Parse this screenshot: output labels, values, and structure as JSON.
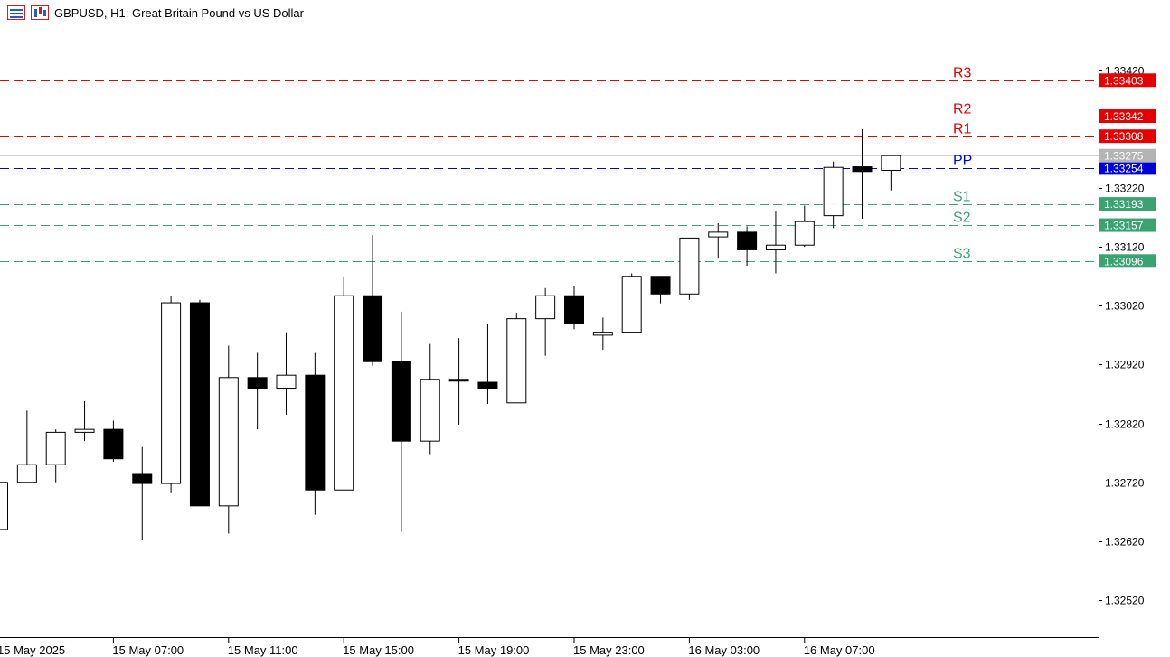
{
  "window": {
    "symbol_title": "GBPUSD, H1:  Great Britain Pound vs US Dollar"
  },
  "colors": {
    "bull_fill": "#ffffff",
    "bear_fill": "#000000",
    "wick": "#000000",
    "resistance": "#e60000",
    "pivot": "#0000d8",
    "support": "#3ba272",
    "current_price_tag": "#b4b4b4",
    "axis": "#000000"
  },
  "icons": [
    "menu-icon",
    "chart-window-icon"
  ],
  "chart_data": {
    "type": "candlestick",
    "timeframe": "H1",
    "ylim": [
      1.3244,
      1.335
    ],
    "y_ticks": [
      "1.33420",
      "1.33220",
      "1.33120",
      "1.33020",
      "1.32920",
      "1.32820",
      "1.32720",
      "1.32620",
      "1.32520"
    ],
    "x_tick_labels": [
      "15 May 2025",
      "15 May 07:00",
      "15 May 11:00",
      "15 May 15:00",
      "15 May 19:00",
      "15 May 23:00",
      "16 May 03:00",
      "16 May 07:00"
    ],
    "candles": [
      {
        "o": 1.3264,
        "h": 1.3272,
        "l": 1.3264,
        "c": 1.3272
      },
      {
        "o": 1.3272,
        "h": 1.32842,
        "l": 1.3272,
        "c": 1.3275
      },
      {
        "o": 1.3275,
        "h": 1.3281,
        "l": 1.3272,
        "c": 1.32805
      },
      {
        "o": 1.32805,
        "h": 1.32858,
        "l": 1.3279,
        "c": 1.3281
      },
      {
        "o": 1.3281,
        "h": 1.32825,
        "l": 1.32755,
        "c": 1.3276
      },
      {
        "o": 1.32735,
        "h": 1.3278,
        "l": 1.32622,
        "c": 1.32718
      },
      {
        "o": 1.32718,
        "h": 1.33036,
        "l": 1.32703,
        "c": 1.33025
      },
      {
        "o": 1.33025,
        "h": 1.3303,
        "l": 1.3268,
        "c": 1.3268
      },
      {
        "o": 1.3268,
        "h": 1.32952,
        "l": 1.32633,
        "c": 1.32898
      },
      {
        "o": 1.32898,
        "h": 1.3294,
        "l": 1.3281,
        "c": 1.3288
      },
      {
        "o": 1.3288,
        "h": 1.32975,
        "l": 1.32835,
        "c": 1.32902
      },
      {
        "o": 1.32902,
        "h": 1.3294,
        "l": 1.32665,
        "c": 1.32707
      },
      {
        "o": 1.32707,
        "h": 1.3307,
        "l": 1.32707,
        "c": 1.33037
      },
      {
        "o": 1.33037,
        "h": 1.3314,
        "l": 1.32918,
        "c": 1.32925
      },
      {
        "o": 1.32925,
        "h": 1.3301,
        "l": 1.32636,
        "c": 1.3279
      },
      {
        "o": 1.3279,
        "h": 1.32955,
        "l": 1.32768,
        "c": 1.32895
      },
      {
        "o": 1.32895,
        "h": 1.32965,
        "l": 1.32818,
        "c": 1.32892
      },
      {
        "o": 1.3289,
        "h": 1.3299,
        "l": 1.32853,
        "c": 1.3288
      },
      {
        "o": 1.32855,
        "h": 1.33008,
        "l": 1.32855,
        "c": 1.32998
      },
      {
        "o": 1.32998,
        "h": 1.3305,
        "l": 1.32935,
        "c": 1.33037
      },
      {
        "o": 1.33037,
        "h": 1.33054,
        "l": 1.3298,
        "c": 1.3299
      },
      {
        "o": 1.3297,
        "h": 1.33,
        "l": 1.32945,
        "c": 1.32975
      },
      {
        "o": 1.32975,
        "h": 1.33075,
        "l": 1.32975,
        "c": 1.3307
      },
      {
        "o": 1.3307,
        "h": 1.3307,
        "l": 1.33024,
        "c": 1.3304
      },
      {
        "o": 1.3304,
        "h": 1.33135,
        "l": 1.3303,
        "c": 1.33135
      },
      {
        "o": 1.33137,
        "h": 1.3316,
        "l": 1.331,
        "c": 1.33145
      },
      {
        "o": 1.33145,
        "h": 1.33155,
        "l": 1.33088,
        "c": 1.33115
      },
      {
        "o": 1.33115,
        "h": 1.3318,
        "l": 1.33075,
        "c": 1.33123
      },
      {
        "o": 1.33123,
        "h": 1.3319,
        "l": 1.3312,
        "c": 1.33163
      },
      {
        "o": 1.33173,
        "h": 1.33265,
        "l": 1.33152,
        "c": 1.33255
      },
      {
        "o": 1.33256,
        "h": 1.3332,
        "l": 1.33168,
        "c": 1.33248
      },
      {
        "o": 1.3325,
        "h": 1.33275,
        "l": 1.33216,
        "c": 1.33275
      }
    ],
    "pivot_levels": [
      {
        "name": "R3",
        "value": 1.33403,
        "label": "1.33403",
        "kind": "resistance"
      },
      {
        "name": "R2",
        "value": 1.33342,
        "label": "1.33342",
        "kind": "resistance"
      },
      {
        "name": "R1",
        "value": 1.33308,
        "label": "1.33308",
        "kind": "resistance"
      },
      {
        "name": "PP",
        "value": 1.33254,
        "label": "1.33254",
        "kind": "pivot"
      },
      {
        "name": "S1",
        "value": 1.33193,
        "label": "1.33193",
        "kind": "support"
      },
      {
        "name": "S2",
        "value": 1.33157,
        "label": "1.33157",
        "kind": "support"
      },
      {
        "name": "S3",
        "value": 1.33096,
        "label": "1.33096",
        "kind": "support"
      }
    ],
    "current_price": {
      "value": 1.33275,
      "label": "1.33275"
    }
  }
}
